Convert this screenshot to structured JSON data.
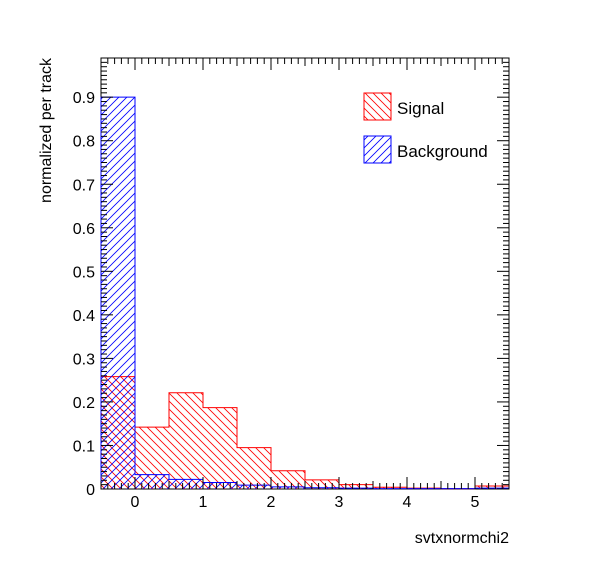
{
  "chart_data": {
    "type": "bar",
    "style": "step-histogram",
    "xlabel": "svtxnormchi2",
    "ylabel": "normalized per track",
    "xlim": [
      -0.5,
      5.5
    ],
    "ylim": [
      0,
      0.99
    ],
    "bin_edges": [
      -0.5,
      0,
      0.5,
      1,
      1.5,
      2,
      2.5,
      3,
      3.5,
      4,
      4.5,
      5,
      5.5
    ],
    "x_ticks": [
      0,
      1,
      2,
      3,
      4,
      5
    ],
    "y_ticks": [
      0,
      0.1,
      0.2,
      0.3,
      0.4,
      0.5,
      0.6,
      0.7,
      0.8,
      0.9
    ],
    "x_tick_labels": [
      "0",
      "1",
      "2",
      "3",
      "4",
      "5"
    ],
    "y_tick_labels": [
      "0",
      "0.1",
      "0.2",
      "0.3",
      "0.4",
      "0.5",
      "0.6",
      "0.7",
      "0.8",
      "0.9"
    ],
    "grid": false,
    "legend_position": "top-right",
    "series": [
      {
        "name": "Signal",
        "color": "#ff0000",
        "hatch": "backslash",
        "values": [
          0.258,
          0.142,
          0.221,
          0.187,
          0.095,
          0.042,
          0.021,
          0.01,
          0.004,
          0.002,
          0.001,
          0.007
        ]
      },
      {
        "name": "Background",
        "color": "#0000ff",
        "hatch": "slash",
        "values": [
          0.9,
          0.033,
          0.022,
          0.015,
          0.009,
          0.005,
          0.003,
          0.002,
          0.001,
          0.001,
          0.001,
          0.002
        ]
      }
    ]
  }
}
